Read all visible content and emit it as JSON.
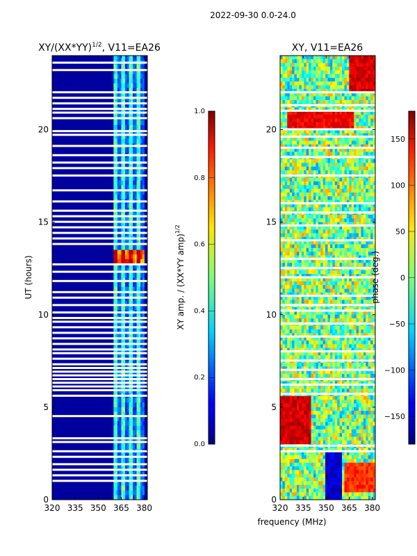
{
  "page": {
    "suptitle": "2022-09-30 0.0-24.0"
  },
  "chart_data": [
    {
      "type": "heatmap",
      "name": "amplitude",
      "title_prefix": "XY/(XX*YY)",
      "title_exp": "1/2",
      "title_suffix": ", V11=EA26",
      "xlabel": "",
      "ylabel": "UT (hours)",
      "xlim": [
        320,
        382
      ],
      "ylim": [
        0,
        24
      ],
      "xticks": [
        320,
        335,
        350,
        365,
        380
      ],
      "yticks": [
        0,
        5,
        10,
        15,
        20
      ],
      "colorbar": {
        "label_prefix": "XY amp. / (XX*YY amp)",
        "label_exp": "1/2",
        "range": [
          0.0,
          1.0
        ],
        "ticks": [
          "0.0",
          "0.2",
          "0.4",
          "0.6",
          "0.8",
          "1.0"
        ],
        "colormap": "jet"
      },
      "background_value": 0.03,
      "active_band_mhz": [
        360,
        380
      ],
      "bright_channels_mhz": [
        361.5,
        366.5,
        371.5,
        376.5
      ],
      "bright_peak": {
        "value": 0.85,
        "ut_range": [
          12.8,
          13.6
        ]
      },
      "gap_ut_hours": [
        23.6,
        23.2,
        22.0,
        21.7,
        21.4,
        21.1,
        20.9,
        20.6,
        19.9,
        19.7,
        19.1,
        18.6,
        18.2,
        17.9,
        17.5,
        16.7,
        16.1,
        15.6,
        15.3,
        15.0,
        14.7,
        14.4,
        14.1,
        13.8,
        12.7,
        12.3,
        11.8,
        11.2,
        10.9,
        10.5,
        10.1,
        9.8,
        9.6,
        9.3,
        9.0,
        8.7,
        8.4,
        8.1,
        7.9,
        7.6,
        7.3,
        7.1,
        6.9,
        6.7,
        6.5,
        6.3,
        6.1,
        5.9,
        5.6,
        4.5,
        3.3,
        3.1,
        2.6,
        2.3,
        1.9,
        1.6,
        1.3,
        1.0
      ]
    },
    {
      "type": "heatmap",
      "name": "phase",
      "title": "XY, V11=EA26",
      "xlabel": "frequency (MHz)",
      "ylabel": "",
      "xlim": [
        320,
        382
      ],
      "ylim": [
        0,
        24
      ],
      "xticks": [
        320,
        335,
        350,
        365,
        380
      ],
      "yticks": [
        0,
        5,
        10,
        15,
        20
      ],
      "colorbar": {
        "label": "phase (deg.)",
        "range": [
          -180,
          180
        ],
        "ticks": [
          "150",
          "100",
          "50",
          "0",
          "−50",
          "−100",
          "−150"
        ],
        "tick_values": [
          150,
          100,
          50,
          0,
          -50,
          -100,
          -150
        ],
        "colormap": "jet"
      },
      "features": [
        {
          "f_mhz": [
            365,
            382
          ],
          "ut": [
            22.0,
            24.0
          ],
          "phase_deg": 150
        },
        {
          "f_mhz": [
            325,
            368
          ],
          "ut": [
            20.0,
            20.9
          ],
          "phase_deg": 140
        },
        {
          "f_mhz": [
            320,
            340
          ],
          "ut": [
            3.0,
            5.5
          ],
          "phase_deg": 150
        },
        {
          "f_mhz": [
            350,
            360
          ],
          "ut": [
            0.0,
            2.5
          ],
          "phase_deg": -150
        },
        {
          "f_mhz": [
            362,
            382
          ],
          "ut": [
            0.5,
            2.0
          ],
          "phase_deg": 120
        }
      ],
      "gap_ut_hours": [
        22.0,
        21.3,
        21.0,
        20.0,
        19.6,
        19.0,
        18.5,
        17.5,
        16.0,
        15.5,
        14.8,
        14.0,
        13.0,
        12.5,
        12.0,
        11.0,
        10.5,
        10.2,
        9.5,
        8.8,
        8.0,
        7.5,
        7.0,
        6.5,
        6.2,
        5.7,
        2.9,
        2.6
      ]
    }
  ]
}
